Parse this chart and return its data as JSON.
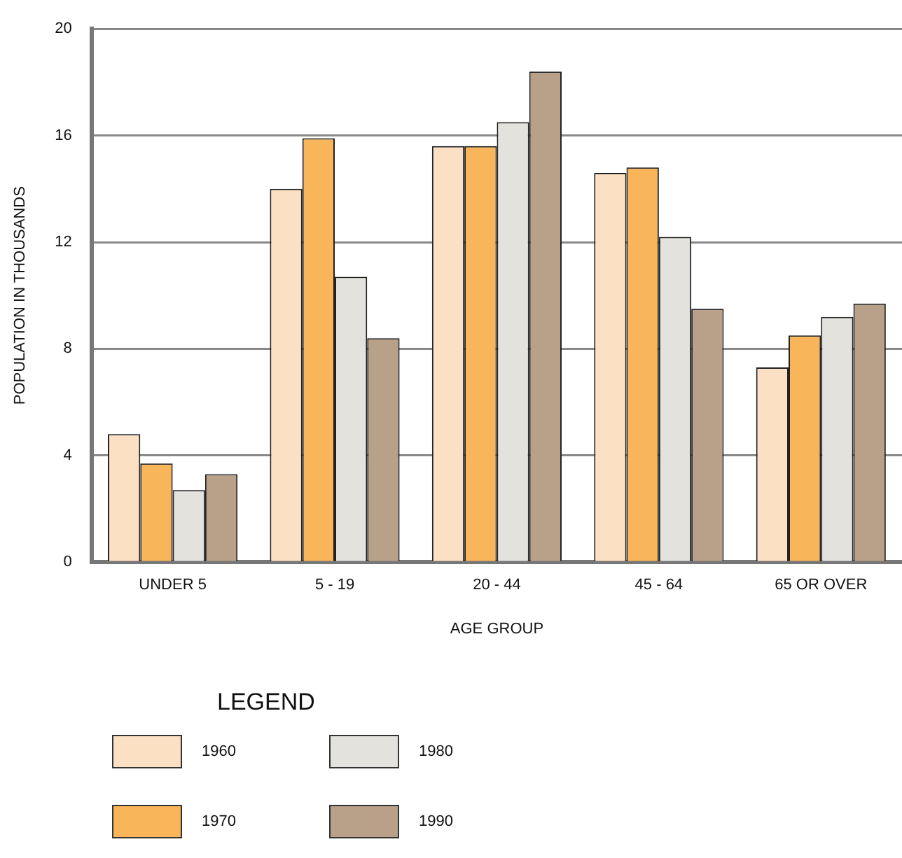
{
  "chart_data": {
    "type": "bar",
    "xlabel": "AGE GROUP",
    "ylabel": "POPULATION IN THOUSANDS",
    "legend_title": "LEGEND",
    "legend": "bottom left",
    "grid": "y",
    "categories": [
      "UNDER 5",
      "5 - 19",
      "20 - 44",
      "45 - 64",
      "65 OR OVER"
    ],
    "ylim": [
      0,
      20
    ],
    "yticks": [
      0,
      4,
      8,
      12,
      16,
      20
    ],
    "series": [
      {
        "name": "1960",
        "color": "#fbe0c3",
        "values": [
          4.8,
          14.0,
          15.6,
          14.6,
          7.3
        ]
      },
      {
        "name": "1970",
        "color": "#f8b55a",
        "values": [
          3.7,
          15.9,
          15.6,
          14.8,
          8.5
        ]
      },
      {
        "name": "1980",
        "color": "#e4e2dd",
        "values": [
          2.7,
          10.7,
          16.5,
          12.2,
          9.2
        ]
      },
      {
        "name": "1990",
        "color": "#b9a089",
        "values": [
          3.3,
          8.4,
          18.4,
          9.5,
          9.7
        ]
      }
    ]
  }
}
